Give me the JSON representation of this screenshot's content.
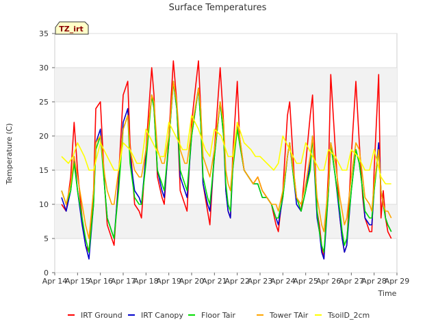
{
  "chart_data": {
    "type": "line",
    "title": "Surface Temperatures",
    "xlabel": "Time",
    "ylabel": "Temperature (C)",
    "site_badge": "TZ_irt",
    "ylim": [
      0,
      35
    ],
    "yticks": [
      0,
      5,
      10,
      15,
      20,
      25,
      30,
      35
    ],
    "xlim": [
      14,
      29
    ],
    "xticks": [
      {
        "v": 14,
        "label": "Apr 14"
      },
      {
        "v": 15,
        "label": "Apr 15"
      },
      {
        "v": 16,
        "label": "Apr 16"
      },
      {
        "v": 17,
        "label": "Apr 17"
      },
      {
        "v": 18,
        "label": "Apr 18"
      },
      {
        "v": 19,
        "label": "Apr 19"
      },
      {
        "v": 20,
        "label": "Apr 20"
      },
      {
        "v": 21,
        "label": "Apr 21"
      },
      {
        "v": 22,
        "label": "Apr 22"
      },
      {
        "v": 23,
        "label": "Apr 23"
      },
      {
        "v": 24,
        "label": "Apr 24"
      },
      {
        "v": 25,
        "label": "Apr 25"
      },
      {
        "v": 26,
        "label": "Apr 26"
      },
      {
        "v": 27,
        "label": "Apr 27"
      },
      {
        "v": 28,
        "label": "Apr 28"
      },
      {
        "v": 29,
        "label": "Apr 29"
      }
    ],
    "grid": true,
    "legend_position": "bottom",
    "series": [
      {
        "name": "IRT Ground",
        "color": "#ff0000",
        "x": [
          14.3,
          14.5,
          14.7,
          14.85,
          15.0,
          15.2,
          15.35,
          15.5,
          15.7,
          15.8,
          16.0,
          16.2,
          16.3,
          16.5,
          16.6,
          16.8,
          17.0,
          17.2,
          17.3,
          17.5,
          17.7,
          17.8,
          18.0,
          18.25,
          18.35,
          18.5,
          18.7,
          18.8,
          19.0,
          19.2,
          19.35,
          19.5,
          19.7,
          19.8,
          20.0,
          20.3,
          20.4,
          20.5,
          20.7,
          20.8,
          21.0,
          21.25,
          21.4,
          21.5,
          21.6,
          21.7,
          21.8,
          22.0,
          22.1,
          22.3,
          22.5,
          22.7,
          22.9,
          23.0,
          23.1,
          23.3,
          23.5,
          23.7,
          23.8,
          24.0,
          24.2,
          24.3,
          24.5,
          24.6,
          24.8,
          25.0,
          25.2,
          25.3,
          25.5,
          25.6,
          25.7,
          25.8,
          26.0,
          26.1,
          26.3,
          26.5,
          26.6,
          26.7,
          26.8,
          27.0,
          27.2,
          27.35,
          27.5,
          27.6,
          27.8,
          27.9,
          28.0,
          28.2,
          28.3,
          28.4,
          28.5,
          28.6,
          28.75
        ],
        "y": [
          10,
          9,
          14,
          22,
          15,
          8,
          4,
          3,
          12,
          24,
          25,
          12,
          7,
          5,
          4,
          14,
          26,
          28,
          19,
          10,
          9,
          8,
          18,
          30,
          26,
          14,
          11,
          10,
          20,
          31,
          25,
          12,
          10,
          9,
          22,
          31,
          24,
          13,
          9,
          7,
          18,
          30,
          22,
          12,
          9,
          8,
          17,
          28,
          20,
          15,
          14,
          13,
          14,
          13,
          12,
          11,
          10,
          7,
          6,
          12,
          23,
          25,
          14,
          11,
          9,
          16,
          23,
          26,
          9,
          7,
          4,
          2,
          15,
          29,
          18,
          8,
          5,
          3,
          4,
          17,
          28,
          19,
          11,
          8,
          6,
          6,
          15,
          29,
          8,
          12,
          8,
          6,
          5
        ]
      },
      {
        "name": "IRT Canopy",
        "color": "#0000cc",
        "x": [
          14.3,
          14.5,
          14.7,
          14.85,
          15.0,
          15.2,
          15.35,
          15.5,
          15.7,
          15.8,
          16.0,
          16.2,
          16.3,
          16.5,
          16.6,
          16.8,
          17.0,
          17.2,
          17.3,
          17.5,
          17.7,
          17.8,
          18.0,
          18.25,
          18.35,
          18.5,
          18.7,
          18.8,
          19.0,
          19.2,
          19.35,
          19.5,
          19.7,
          19.8,
          20.0,
          20.3,
          20.4,
          20.5,
          20.7,
          20.8,
          21.0,
          21.25,
          21.4,
          21.5,
          21.6,
          21.7,
          21.8,
          22.0,
          22.1,
          22.3,
          22.5,
          22.7,
          22.9,
          23.0,
          23.1,
          23.3,
          23.5,
          23.7,
          23.8,
          24.0,
          24.2,
          24.3,
          24.5,
          24.6,
          24.8,
          25.0,
          25.2,
          25.3,
          25.5,
          25.6,
          25.7,
          25.8,
          26.0,
          26.1,
          26.3,
          26.5,
          26.6,
          26.7,
          26.8,
          27.0,
          27.2,
          27.35,
          27.5,
          27.6,
          27.8,
          27.9,
          28.0,
          28.2,
          28.3,
          28.4,
          28.5,
          28.6,
          28.75
        ],
        "y": [
          11,
          9,
          12,
          17,
          12,
          7,
          4,
          2,
          10,
          19,
          21,
          12,
          8,
          6,
          5,
          13,
          22,
          24,
          17,
          12,
          11,
          10,
          17,
          26,
          24,
          15,
          12,
          11,
          19,
          28,
          24,
          14,
          12,
          11,
          20,
          27,
          22,
          13,
          10,
          9,
          17,
          25,
          20,
          12,
          9,
          8,
          15,
          22,
          19,
          15,
          14,
          13,
          13,
          12,
          11,
          11,
          10,
          8,
          7,
          11,
          17,
          19,
          13,
          10,
          9,
          12,
          16,
          20,
          8,
          6,
          3,
          2,
          12,
          19,
          14,
          8,
          5,
          3,
          4,
          12,
          18,
          16,
          12,
          8,
          7,
          7,
          12,
          19,
          12,
          10,
          8,
          7,
          6
        ]
      },
      {
        "name": "Floor Tair",
        "color": "#00dd00",
        "x": [
          14.3,
          14.5,
          14.7,
          14.85,
          15.0,
          15.2,
          15.35,
          15.5,
          15.7,
          15.8,
          16.0,
          16.2,
          16.3,
          16.5,
          16.6,
          16.8,
          17.0,
          17.2,
          17.3,
          17.5,
          17.7,
          17.8,
          18.0,
          18.25,
          18.35,
          18.5,
          18.7,
          18.8,
          19.0,
          19.2,
          19.35,
          19.5,
          19.7,
          19.8,
          20.0,
          20.3,
          20.4,
          20.5,
          20.7,
          20.8,
          21.0,
          21.25,
          21.4,
          21.5,
          21.6,
          21.7,
          21.8,
          22.0,
          22.1,
          22.3,
          22.5,
          22.7,
          22.9,
          23.0,
          23.1,
          23.3,
          23.5,
          23.7,
          23.8,
          24.0,
          24.2,
          24.3,
          24.5,
          24.6,
          24.8,
          25.0,
          25.2,
          25.3,
          25.5,
          25.6,
          25.7,
          25.8,
          26.0,
          26.1,
          26.3,
          26.5,
          26.6,
          26.7,
          26.8,
          27.0,
          27.2,
          27.35,
          27.5,
          27.6,
          27.8,
          27.9,
          28.0,
          28.2,
          28.3,
          28.4,
          28.5,
          28.6,
          28.75
        ],
        "y": [
          12,
          10,
          12,
          16,
          12,
          8,
          5,
          3,
          10,
          18,
          20,
          12,
          8,
          6,
          5,
          12,
          21,
          23,
          16,
          11,
          10,
          10,
          16,
          26,
          24,
          15,
          13,
          12,
          19,
          28,
          24,
          15,
          13,
          12,
          20,
          27,
          22,
          14,
          11,
          10,
          17,
          25,
          20,
          13,
          10,
          9,
          15,
          21,
          19,
          15,
          14,
          13,
          13,
          12,
          11,
          11,
          10,
          8,
          8,
          11,
          17,
          19,
          13,
          11,
          9,
          12,
          15,
          20,
          9,
          6,
          4,
          3,
          12,
          19,
          14,
          9,
          6,
          4,
          5,
          12,
          18,
          16,
          12,
          9,
          8,
          8,
          12,
          18,
          12,
          10,
          8,
          7,
          6
        ]
      },
      {
        "name": "Tower TAir",
        "color": "#ffa500",
        "x": [
          14.3,
          14.5,
          14.7,
          14.85,
          15.0,
          15.2,
          15.35,
          15.5,
          15.7,
          15.8,
          16.0,
          16.2,
          16.3,
          16.5,
          16.6,
          16.8,
          17.0,
          17.2,
          17.3,
          17.5,
          17.7,
          17.8,
          18.0,
          18.25,
          18.35,
          18.5,
          18.7,
          18.8,
          19.0,
          19.2,
          19.35,
          19.5,
          19.7,
          19.8,
          20.0,
          20.3,
          20.4,
          20.5,
          20.7,
          20.8,
          21.0,
          21.25,
          21.4,
          21.5,
          21.6,
          21.7,
          21.8,
          22.0,
          22.1,
          22.3,
          22.5,
          22.7,
          22.9,
          23.0,
          23.1,
          23.3,
          23.5,
          23.7,
          23.8,
          24.0,
          24.2,
          24.3,
          24.5,
          24.6,
          24.8,
          25.0,
          25.2,
          25.3,
          25.5,
          25.6,
          25.7,
          25.8,
          26.0,
          26.1,
          26.3,
          26.5,
          26.6,
          26.7,
          26.8,
          27.0,
          27.2,
          27.35,
          27.5,
          27.6,
          27.8,
          27.9,
          28.0,
          28.2,
          28.3,
          28.4,
          28.5,
          28.6,
          28.75
        ],
        "y": [
          12,
          10,
          13,
          17,
          14,
          10,
          7,
          5,
          12,
          19,
          20,
          14,
          12,
          10,
          10,
          15,
          21,
          23,
          18,
          15,
          14,
          14,
          18,
          26,
          25,
          18,
          16,
          16,
          20,
          28,
          25,
          18,
          16,
          16,
          21,
          27,
          24,
          17,
          15,
          14,
          18,
          25,
          22,
          15,
          13,
          12,
          16,
          22,
          20,
          15,
          14,
          13,
          14,
          13,
          12,
          11,
          10,
          10,
          9,
          12,
          17,
          19,
          14,
          11,
          10,
          13,
          17,
          20,
          11,
          9,
          7,
          6,
          13,
          19,
          16,
          11,
          9,
          7,
          8,
          14,
          19,
          18,
          14,
          11,
          10,
          9,
          13,
          18,
          12,
          10,
          9,
          9,
          8
        ]
      },
      {
        "name": "TsoilD_2cm",
        "color": "#ffff00",
        "x": [
          14.3,
          14.6,
          14.8,
          15.0,
          15.3,
          15.5,
          15.7,
          16.0,
          16.3,
          16.6,
          16.8,
          17.0,
          17.3,
          17.6,
          17.8,
          18.0,
          18.3,
          18.6,
          18.8,
          19.0,
          19.3,
          19.6,
          19.8,
          20.0,
          20.3,
          20.6,
          20.8,
          21.0,
          21.3,
          21.6,
          21.8,
          22.0,
          22.3,
          22.6,
          22.8,
          23.0,
          23.3,
          23.6,
          23.8,
          24.0,
          24.3,
          24.6,
          24.8,
          25.0,
          25.3,
          25.6,
          25.8,
          26.0,
          26.3,
          26.6,
          26.8,
          27.0,
          27.3,
          27.6,
          27.8,
          28.0,
          28.3,
          28.5,
          28.75
        ],
        "y": [
          17,
          16,
          17,
          19,
          17,
          15,
          15,
          19,
          17,
          15,
          15,
          19,
          18,
          16,
          16,
          21,
          19,
          17,
          17,
          22,
          20,
          18,
          18,
          23,
          21,
          18,
          17,
          21,
          20,
          17,
          17,
          22,
          19,
          18,
          17,
          17,
          16,
          15,
          16,
          20,
          18,
          16,
          16,
          19,
          17,
          15,
          15,
          18,
          17,
          15,
          15,
          18,
          17,
          15,
          15,
          18,
          14,
          13,
          13
        ]
      }
    ]
  }
}
